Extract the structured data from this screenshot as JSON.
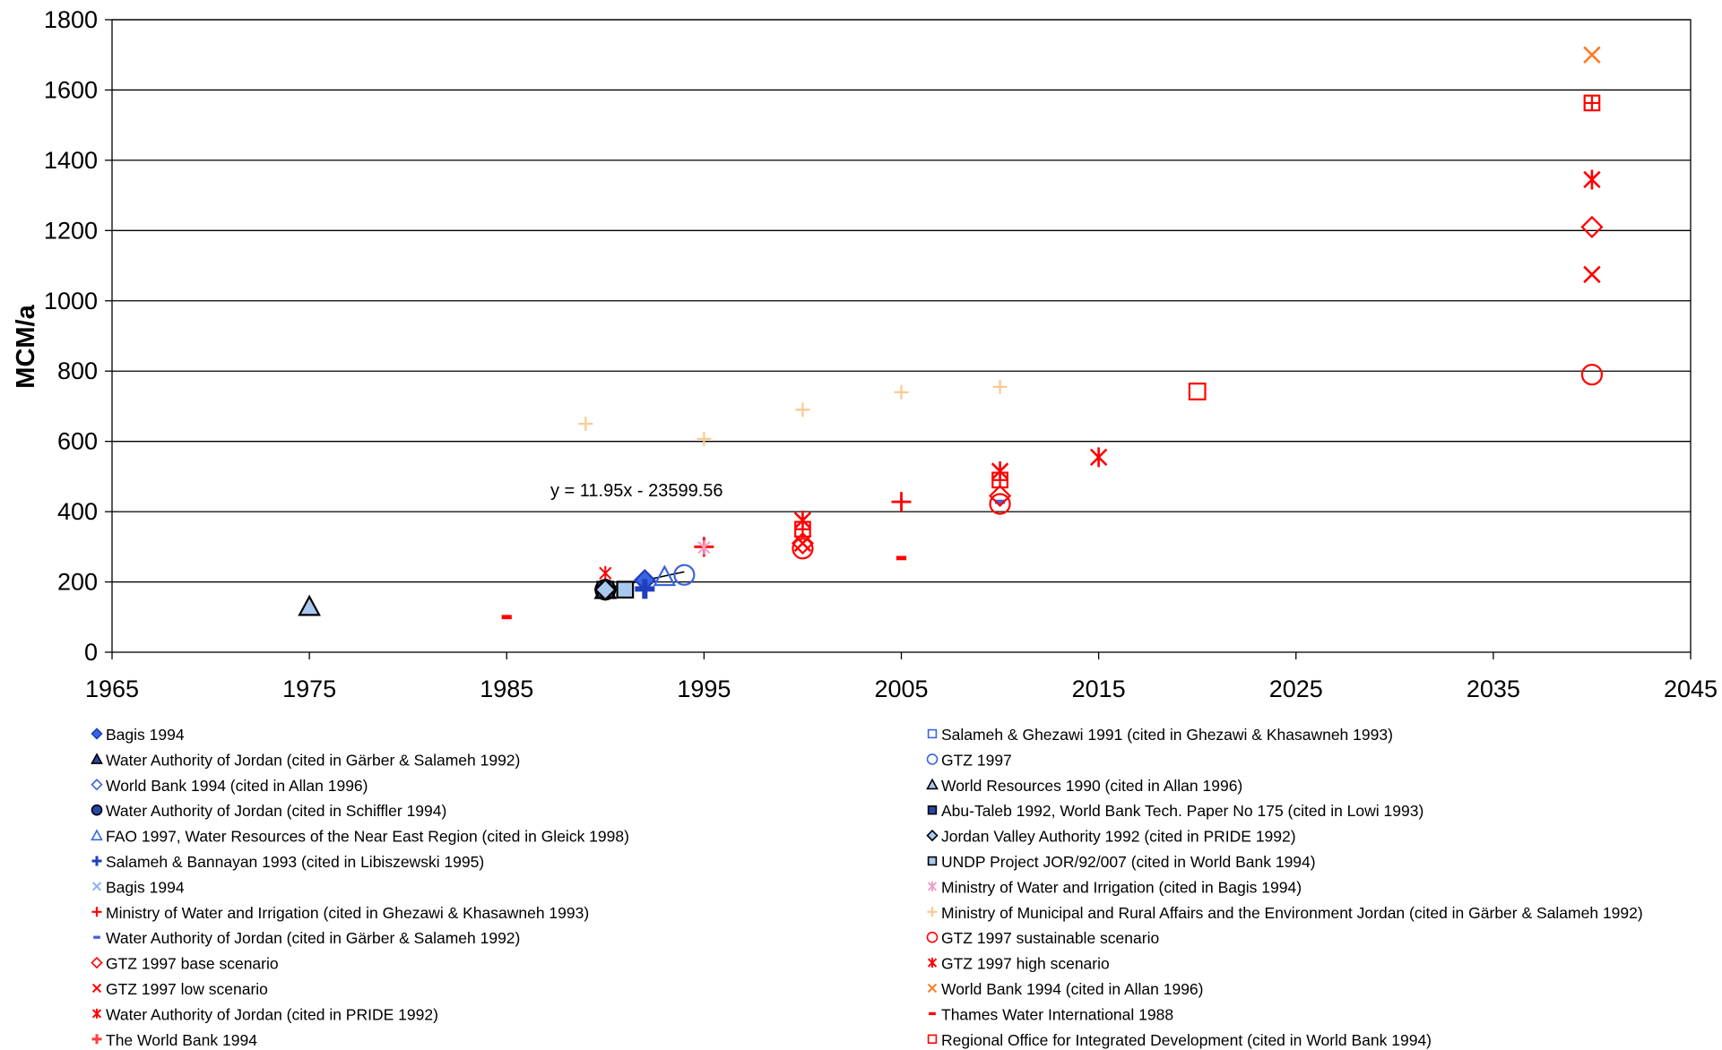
{
  "chart_data": {
    "type": "scatter",
    "title": "",
    "xlabel": "",
    "ylabel": "MCM/a",
    "xlim": [
      1965,
      2045
    ],
    "ylim": [
      0,
      1800
    ],
    "x_ticks": [
      "1965",
      "1975",
      "1985",
      "1995",
      "2005",
      "2015",
      "2025",
      "2035",
      "2045"
    ],
    "y_ticks": [
      "0",
      "200",
      "400",
      "600",
      "800",
      "1000",
      "1200",
      "1400",
      "1600",
      "1800"
    ],
    "grid": "horizontal",
    "legend_placement": "bottom",
    "trendline": {
      "label": "y = 11.95x - 23599.56",
      "slope": 11.95,
      "intercept": -23599.56,
      "x_range": [
        1990,
        1994
      ]
    },
    "series": [
      {
        "name": "Bagis 1994",
        "marker": "diamond",
        "color": "#1f3fbf",
        "fill": "#3a64e0",
        "size": "large",
        "points": [
          [
            1990,
            178
          ],
          [
            1992,
            205
          ]
        ]
      },
      {
        "name": "Water Authority of Jordan (cited in Gärber & Salameh 1992)",
        "marker": "triangle",
        "color": "#000000",
        "fill": "#2746a8",
        "size": "large",
        "points": [
          [
            1990,
            178
          ]
        ]
      },
      {
        "name": "World Bank 1994 (cited in Allan 1996)",
        "marker": "diamond",
        "color": "#3a64e0",
        "fill": "none",
        "size": "small",
        "points": []
      },
      {
        "name": "Water Authority of Jordan (cited in Schiffler 1994)",
        "marker": "circle",
        "color": "#000000",
        "fill": "#2746a8",
        "size": "large",
        "points": [
          [
            1990,
            178
          ]
        ]
      },
      {
        "name": "FAO 1997, Water Resources of the Near East Region (cited in Gleick 1998)",
        "marker": "triangle",
        "color": "#3a64e0",
        "fill": "none",
        "size": "large",
        "points": [
          [
            1993,
            215
          ]
        ]
      },
      {
        "name": "Salameh & Bannayan 1993 (cited in Libiszewski 1995)",
        "marker": "cross-filled",
        "color": "#1f3fbf",
        "fill": "#1f3fbf",
        "size": "large",
        "points": [
          [
            1992,
            180
          ]
        ]
      },
      {
        "name": "Bagis 1994",
        "marker": "x",
        "color": "#8ab4f0",
        "fill": "none",
        "size": "small",
        "points": []
      },
      {
        "name": "Ministry of Water and Irrigation (cited in Ghezawi & Khasawneh 1993)",
        "marker": "plus",
        "color": "#ff0000",
        "fill": "none",
        "size": "large",
        "points": [
          [
            1995,
            300
          ],
          [
            2005,
            428
          ]
        ]
      },
      {
        "name": "Water Authority of Jordan (cited in Gärber & Salameh 1992)",
        "marker": "dash",
        "color": "#3a64e0",
        "fill": "none",
        "size": "small",
        "points": [
          [
            2010,
            428
          ]
        ]
      },
      {
        "name": "GTZ 1997 base scenario",
        "marker": "diamond",
        "color": "#ff0000",
        "fill": "none",
        "size": "large",
        "points": [
          [
            2000,
            310
          ],
          [
            2010,
            445
          ],
          [
            2040,
            1210
          ]
        ]
      },
      {
        "name": "GTZ 1997 low scenario",
        "marker": "x",
        "color": "#ff0000",
        "fill": "none",
        "size": "large",
        "points": [
          [
            2000,
            310
          ],
          [
            2040,
            1075
          ]
        ]
      },
      {
        "name": "Water Authority of Jordan (cited in PRIDE 1992)",
        "marker": "asterisk",
        "color": "#ff0000",
        "fill": "none",
        "size": "small",
        "points": [
          [
            1990,
            225
          ]
        ]
      },
      {
        "name": "The World Bank 1994",
        "marker": "cross-filled",
        "color": "#ff4040",
        "fill": "#ff4040",
        "size": "small",
        "points": [
          [
            1991,
            175
          ]
        ]
      },
      {
        "name": "Salameh & Ghezawi 1991 (cited in Ghezawi & Khasawneh 1993)",
        "marker": "square",
        "color": "#3a64e0",
        "fill": "none",
        "size": "small",
        "points": []
      },
      {
        "name": "GTZ 1997",
        "marker": "circle",
        "color": "#3a64e0",
        "fill": "none",
        "size": "large",
        "points": [
          [
            1994,
            220
          ]
        ]
      },
      {
        "name": "World Resources 1990 (cited in Allan 1996)",
        "marker": "triangle",
        "color": "#000000",
        "fill": "#a9c8ee",
        "size": "large",
        "points": [
          [
            1975,
            130
          ]
        ]
      },
      {
        "name": "Abu-Taleb 1992, World Bank Tech. Paper No 175 (cited in Lowi 1993)",
        "marker": "square",
        "color": "#000000",
        "fill": "#2746a8",
        "size": "large",
        "points": [
          [
            1990,
            178
          ]
        ]
      },
      {
        "name": "Jordan Valley Authority 1992 (cited in PRIDE 1992)",
        "marker": "diamond",
        "color": "#000000",
        "fill": "#a9c8ee",
        "size": "large",
        "points": [
          [
            1990,
            178
          ]
        ]
      },
      {
        "name": "UNDP Project JOR/92/007 (cited in World Bank 1994)",
        "marker": "square",
        "color": "#000000",
        "fill": "#a9c8ee",
        "size": "large",
        "points": [
          [
            1991,
            178
          ]
        ]
      },
      {
        "name": "Ministry of Water and Irrigation (cited in Bagis 1994)",
        "marker": "asterisk",
        "color": "#f0a0c8",
        "fill": "none",
        "size": "small",
        "points": [
          [
            1995,
            298
          ]
        ]
      },
      {
        "name": "Ministry of Municipal and Rural Affairs and the Environment Jordan (cited in Gärber & Salameh 1992)",
        "marker": "plus",
        "color": "#fcc890",
        "fill": "none",
        "size": "small",
        "points": [
          [
            1989,
            650
          ],
          [
            1995,
            607
          ],
          [
            2000,
            690
          ],
          [
            2005,
            740
          ],
          [
            2010,
            755
          ]
        ]
      },
      {
        "name": "GTZ 1997 sustainable scenario",
        "marker": "circle",
        "color": "#ff0000",
        "fill": "none",
        "size": "large",
        "points": [
          [
            2000,
            295
          ],
          [
            2010,
            422
          ],
          [
            2040,
            790
          ]
        ]
      },
      {
        "name": "GTZ 1997 high scenario",
        "marker": "asterisk",
        "color": "#ff0000",
        "fill": "none",
        "size": "large",
        "points": [
          [
            2000,
            375
          ],
          [
            2010,
            515
          ],
          [
            2015,
            555
          ],
          [
            2040,
            1345
          ]
        ]
      },
      {
        "name": "World Bank 1994 (cited in Allan 1996)",
        "marker": "x",
        "color": "#ff7a20",
        "fill": "none",
        "size": "large",
        "points": [
          [
            2040,
            1700
          ]
        ]
      },
      {
        "name": "Thames Water International 1988",
        "marker": "dash",
        "color": "#ff0000",
        "fill": "none",
        "size": "small",
        "points": [
          [
            1985,
            100
          ],
          [
            2005,
            268
          ]
        ]
      },
      {
        "name": "Regional Office for Integrated Development (cited in World Bank 1994)",
        "marker": "square",
        "color": "#ff0000",
        "fill": "none",
        "size": "large",
        "points": [
          [
            2020,
            742
          ]
        ]
      },
      {
        "name": "",
        "marker": "square-plus",
        "color": "#ff0000",
        "fill": "none",
        "size": "large",
        "points": [
          [
            2000,
            350
          ],
          [
            2010,
            490
          ],
          [
            2040,
            1563
          ]
        ]
      }
    ]
  }
}
